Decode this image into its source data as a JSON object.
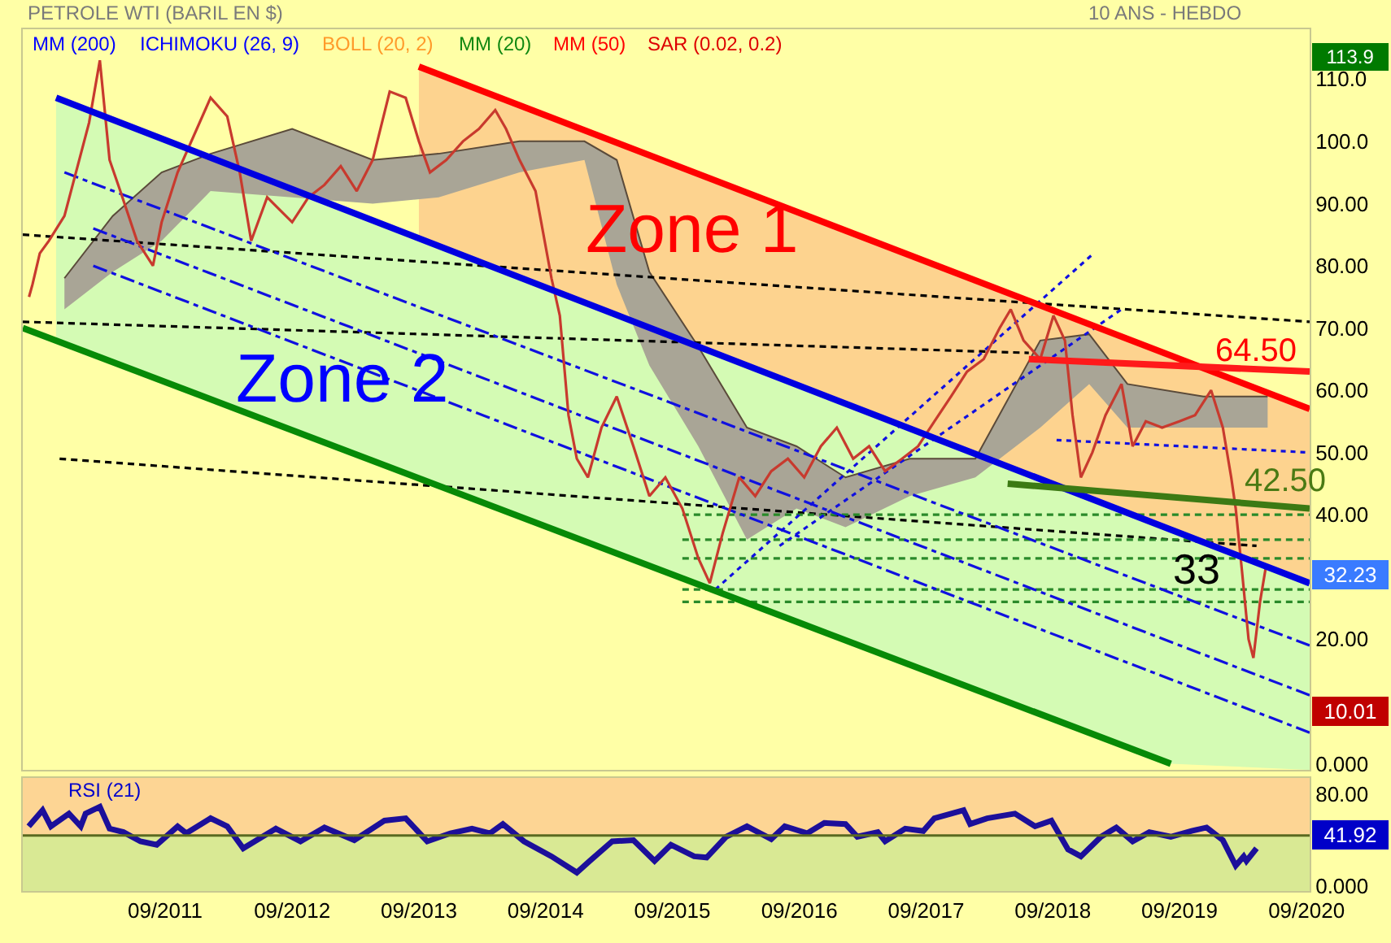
{
  "chart_data": [
    {
      "type": "line",
      "title": "PETROLE WTI (BARIL EN $)",
      "subtitle": "10 ANS - HEBDO",
      "xlim": [
        "2010-07-18",
        "2020-09-10"
      ],
      "ylim": [
        -1,
        118
      ],
      "yticks": [
        {
          "value": 0,
          "label": "0.000"
        },
        {
          "value": 20,
          "label": "20.00"
        },
        {
          "value": 40,
          "label": "40.00"
        },
        {
          "value": 50,
          "label": "50.00"
        },
        {
          "value": 60,
          "label": "60.00"
        },
        {
          "value": 70,
          "label": "70.00"
        },
        {
          "value": 80,
          "label": "80.00"
        },
        {
          "value": 90,
          "label": "90.00"
        },
        {
          "value": 100,
          "label": "100.0"
        },
        {
          "value": 110,
          "label": "110.0"
        }
      ],
      "tick_labels": "y",
      "grid": false,
      "series": [
        {
          "type": "line",
          "color": "#5a4a3a",
          "line_style": "solid",
          "x": [
            "2010-11-15",
            "2011-04-03",
            "2011-08-22",
            "2012-01-10",
            "2012-09-01",
            "2013-04-21",
            "2013-10-28",
            "2014-06-18",
            "2014-12-22",
            "2015-03-25",
            "2015-06-27",
            "2015-11-15",
            "2016-04-03",
            "2016-08-24",
            "2017-01-12",
            "2017-07-16",
            "2018-01-21",
            "2018-07-27",
            "2018-12-15",
            "2019-04-04",
            "2019-11-09",
            "2020-05-12"
          ],
          "values": [
            78,
            88,
            95,
            98,
            102,
            97,
            98,
            100,
            100,
            97,
            79,
            67,
            54,
            51,
            46,
            49,
            49,
            68,
            69,
            61,
            59,
            59
          ],
          "upper": [
            78,
            88,
            95,
            98,
            102,
            97,
            98,
            100,
            100,
            97,
            79,
            67,
            54,
            51,
            46,
            49,
            49,
            68,
            69,
            61,
            59,
            59
          ],
          "lower": [
            73,
            79,
            84,
            92,
            91,
            90,
            91,
            95,
            97,
            77,
            64,
            51,
            36,
            41,
            38,
            43,
            46,
            54,
            61,
            54,
            54,
            54
          ]
        },
        {
          "type": "line",
          "color": "#000000",
          "line_style": "dashed",
          "x": [
            "2010-07-18",
            "2020-09-10"
          ],
          "values": [
            85,
            71
          ]
        },
        {
          "type": "line",
          "color": "#000000",
          "line_style": "dashed",
          "x": [
            "2010-07-18",
            "2018-06-24"
          ],
          "values": [
            71,
            66
          ]
        },
        {
          "type": "line",
          "color": "#000000",
          "line_style": "dashed",
          "x": [
            "2010-11-01",
            "2020-04-10"
          ],
          "values": [
            49,
            35
          ]
        },
        {
          "type": "line",
          "color": "#2a8a2a",
          "line_style": "dashed",
          "x": [
            "2015-09-30",
            "2020-09-10"
          ],
          "values": [
            40,
            40
          ]
        },
        {
          "type": "line",
          "color": "#2a8a2a",
          "line_style": "dashed",
          "x": [
            "2015-09-30",
            "2020-09-10"
          ],
          "values": [
            36,
            36
          ]
        },
        {
          "type": "line",
          "color": "#2a8a2a",
          "line_style": "dashed",
          "x": [
            "2015-09-30",
            "2020-09-10"
          ],
          "values": [
            33,
            33
          ]
        },
        {
          "type": "line",
          "color": "#2a8a2a",
          "line_style": "dashed",
          "x": [
            "2015-09-30",
            "2020-09-10"
          ],
          "values": [
            28,
            28
          ]
        },
        {
          "type": "line",
          "color": "#2a8a2a",
          "line_style": "dashed",
          "x": [
            "2015-09-30",
            "2020-09-10"
          ],
          "values": [
            26,
            26
          ]
        },
        {
          "type": "line",
          "color": "#1010e0",
          "line_style": "dashdot",
          "x": [
            "2010-11-15",
            "2020-09-10"
          ],
          "values": [
            95,
            19
          ]
        },
        {
          "type": "line",
          "color": "#1010e0",
          "line_style": "dashdot",
          "x": [
            "2011-02-06",
            "2020-09-10"
          ],
          "values": [
            86,
            11
          ]
        },
        {
          "type": "line",
          "color": "#1010e0",
          "line_style": "dashdot",
          "x": [
            "2011-02-06",
            "2020-09-10"
          ],
          "values": [
            80,
            5
          ]
        },
        {
          "type": "line",
          "color": "#1010e0",
          "line_style": "dotted",
          "x": [
            "2016-01-03",
            "2018-12-28"
          ],
          "values": [
            28,
            82
          ]
        },
        {
          "type": "line",
          "color": "#1010e0",
          "line_style": "dotted",
          "x": [
            "2016-07-06",
            "2019-03-18"
          ],
          "values": [
            35,
            73
          ]
        },
        {
          "type": "line",
          "color": "#1010e0",
          "line_style": "dotted",
          "x": [
            "2018-09-12",
            "2020-09-10"
          ],
          "values": [
            52,
            50
          ]
        },
        {
          "type": "line",
          "color": "#c83a2e",
          "line_style": "solid",
          "x": [
            "2010-08-05",
            "2010-08-15",
            "2010-09-05",
            "2010-10-01",
            "2010-11-15",
            "2011-01-25",
            "2011-02-25",
            "2011-03-25",
            "2011-04-25",
            "2011-06-12",
            "2011-07-28",
            "2011-08-22",
            "2011-10-07",
            "2012-01-10",
            "2012-02-27",
            "2012-04-03",
            "2012-05-06",
            "2012-06-21",
            "2012-09-01",
            "2012-10-18",
            "2012-12-03",
            "2013-01-19",
            "2013-03-06",
            "2013-04-21",
            "2013-06-09",
            "2013-07-25",
            "2013-09-01",
            "2013-10-03",
            "2013-11-19",
            "2014-01-06",
            "2014-02-21",
            "2014-04-09",
            "2014-05-10",
            "2014-06-18",
            "2014-08-03",
            "2014-09-18",
            "2014-10-12",
            "2014-11-06",
            "2014-11-30",
            "2015-01-01",
            "2015-02-09",
            "2015-03-25",
            "2015-05-12",
            "2015-06-27",
            "2015-08-12",
            "2015-09-30",
            "2015-11-15",
            "2015-12-18",
            "2016-01-24",
            "2016-03-12",
            "2016-04-27",
            "2016-06-12",
            "2016-07-30",
            "2016-09-15",
            "2016-11-02",
            "2016-12-18",
            "2017-02-03",
            "2017-03-21",
            "2017-05-06",
            "2017-06-24",
            "2017-08-09",
            "2017-09-25",
            "2017-11-12",
            "2017-12-28",
            "2018-02-14",
            "2018-04-01",
            "2018-05-03",
            "2018-06-09",
            "2018-07-27",
            "2018-09-03",
            "2018-10-06",
            "2018-10-28",
            "2018-11-21",
            "2018-12-24",
            "2019-01-31",
            "2019-03-18",
            "2019-04-19",
            "2019-05-27",
            "2019-07-13",
            "2019-09-01",
            "2019-10-16",
            "2019-12-01",
            "2020-01-04",
            "2020-01-28",
            "2020-02-10",
            "2020-02-28",
            "2020-03-18",
            "2020-04-01",
            "2020-04-20",
            "2020-05-08"
          ],
          "values": [
            75,
            77,
            82,
            84,
            88,
            103,
            113,
            97,
            92,
            84,
            80,
            87,
            95,
            107,
            104,
            95,
            84,
            91,
            87,
            91,
            93,
            96,
            92,
            97,
            108,
            107,
            100,
            95,
            97,
            100,
            102,
            105,
            102,
            97,
            92,
            78,
            72,
            56,
            49,
            46,
            54,
            59,
            51,
            43,
            46,
            41,
            33,
            29,
            37,
            46,
            43,
            47,
            49,
            46,
            51,
            54,
            49,
            51,
            47,
            49,
            51,
            55,
            59,
            63,
            65,
            70,
            73,
            68,
            65,
            72,
            68,
            56,
            46,
            50,
            56,
            61,
            51,
            55,
            54,
            55,
            56,
            60,
            54,
            46,
            41,
            31,
            20,
            17,
            26,
            32
          ]
        },
        {
          "type": "line",
          "color": "#ff0000",
          "line_style": "solid",
          "x": [
            "2013-09-01",
            "2020-09-10"
          ],
          "values": [
            112,
            57
          ],
          "upper": [
            112,
            57
          ],
          "lower": [
            84.4,
            29
          ]
        },
        {
          "type": "line",
          "color": "#0000e0",
          "line_style": "solid",
          "x": [
            "2010-10-22",
            "2019-08-07",
            "2020-09-10"
          ],
          "values": [
            107,
            37.6,
            29
          ],
          "upper": [
            107,
            37.6,
            29
          ],
          "lower": [
            67.9,
            0,
            -1
          ]
        },
        {
          "type": "line",
          "color": "#078a07",
          "line_style": "solid",
          "x": [
            "2010-07-18",
            "2019-08-07"
          ],
          "values": [
            70,
            0
          ]
        },
        {
          "type": "line",
          "color": "#ff1a1a",
          "line_style": "solid",
          "x": [
            "2018-06-24",
            "2020-09-10"
          ],
          "values": [
            65,
            63
          ]
        },
        {
          "type": "line",
          "color": "#3c7a14",
          "line_style": "solid",
          "x": [
            "2018-04-24",
            "2020-09-10"
          ],
          "values": [
            45,
            41
          ]
        }
      ],
      "annotations": [
        "MM (200)",
        "ICHIMOKU (26, 9)",
        "BOLL (20, 2)",
        "MM (20)",
        "MM (50)",
        "SAR (0.02, 0.2)",
        "Zone 1",
        "Zone 2",
        "64.50",
        "42.50",
        "33",
        "113.9",
        "32.23",
        "10.01"
      ]
    },
    {
      "type": "line",
      "xlim": [
        "2010-07-18",
        "2020-09-10"
      ],
      "ylim": [
        -4,
        94
      ],
      "yticks": [
        {
          "value": 0,
          "label": "0.000"
        },
        {
          "value": 80,
          "label": "80.00"
        }
      ],
      "xticks": [
        {
          "value": "2011-09-01",
          "label": "09/2011"
        },
        {
          "value": "2012-09-01",
          "label": "09/2012"
        },
        {
          "value": "2013-09-01",
          "label": "09/2013"
        },
        {
          "value": "2014-09-01",
          "label": "09/2014"
        },
        {
          "value": "2015-09-01",
          "label": "09/2015"
        },
        {
          "value": "2016-09-01",
          "label": "09/2016"
        },
        {
          "value": "2017-09-01",
          "label": "09/2017"
        },
        {
          "value": "2018-09-01",
          "label": "09/2018"
        },
        {
          "value": "2019-09-01",
          "label": "09/2019"
        },
        {
          "value": "2020-09-01",
          "label": "09/2020"
        }
      ],
      "grid": false,
      "bands": [
        {
          "axis": "y",
          "from": 44,
          "to": 94,
          "color": "#fdd594"
        },
        {
          "axis": "y",
          "from": -4,
          "to": 44,
          "color": "#d9e994"
        }
      ],
      "ref_lines": [
        {
          "axis": "y",
          "value": 44,
          "color": "#5a6a20"
        }
      ],
      "series": [
        {
          "type": "line",
          "color": "#1c0f9a",
          "line_style": "solid",
          "x": [
            "2010-08-04",
            "2010-09-13",
            "2010-10-07",
            "2010-11-28",
            "2011-01-01",
            "2011-01-15",
            "2011-02-25",
            "2011-03-25",
            "2011-05-04",
            "2011-06-22",
            "2011-08-08",
            "2011-10-07",
            "2011-11-01",
            "2012-01-10",
            "2012-02-27",
            "2012-04-13",
            "2012-07-16",
            "2012-09-25",
            "2012-12-03",
            "2013-02-27",
            "2013-05-25",
            "2013-07-25",
            "2013-09-25",
            "2013-12-01",
            "2014-02-01",
            "2014-03-25",
            "2014-05-01",
            "2014-07-01",
            "2014-09-18",
            "2014-11-30",
            "2015-01-06",
            "2015-03-12",
            "2015-05-12",
            "2015-07-12",
            "2015-08-28",
            "2015-11-03",
            "2015-12-09",
            "2016-02-03",
            "2016-04-03",
            "2016-06-12",
            "2016-07-21",
            "2016-09-24",
            "2016-11-12",
            "2017-01-12",
            "2017-02-15",
            "2017-04-15",
            "2017-05-06",
            "2017-07-03",
            "2017-08-24",
            "2017-09-25",
            "2017-12-18",
            "2018-01-06",
            "2018-02-24",
            "2018-05-15",
            "2018-07-12",
            "2018-08-28",
            "2018-10-15",
            "2018-11-21",
            "2019-01-18",
            "2019-03-03",
            "2019-04-19",
            "2019-06-06",
            "2019-08-07",
            "2019-10-06",
            "2019-11-18",
            "2020-01-04",
            "2020-02-10",
            "2020-03-04",
            "2020-03-12",
            "2020-04-10"
          ],
          "values": [
            52,
            66,
            52,
            63,
            52,
            63,
            69,
            50,
            47,
            39,
            36,
            52,
            46,
            59,
            52,
            33,
            50,
            39,
            51,
            40,
            57,
            59,
            39,
            46,
            50,
            46,
            54,
            39,
            26,
            12,
            22,
            39,
            40,
            22,
            36,
            26,
            25,
            43,
            52,
            41,
            52,
            46,
            55,
            54,
            43,
            47,
            39,
            50,
            48,
            59,
            66,
            54,
            59,
            63,
            52,
            57,
            32,
            26,
            43,
            51,
            39,
            47,
            43,
            48,
            51,
            40,
            18,
            26,
            22,
            33
          ]
        }
      ],
      "annotations": [
        "RSI (21)",
        "41.92"
      ]
    }
  ]
}
